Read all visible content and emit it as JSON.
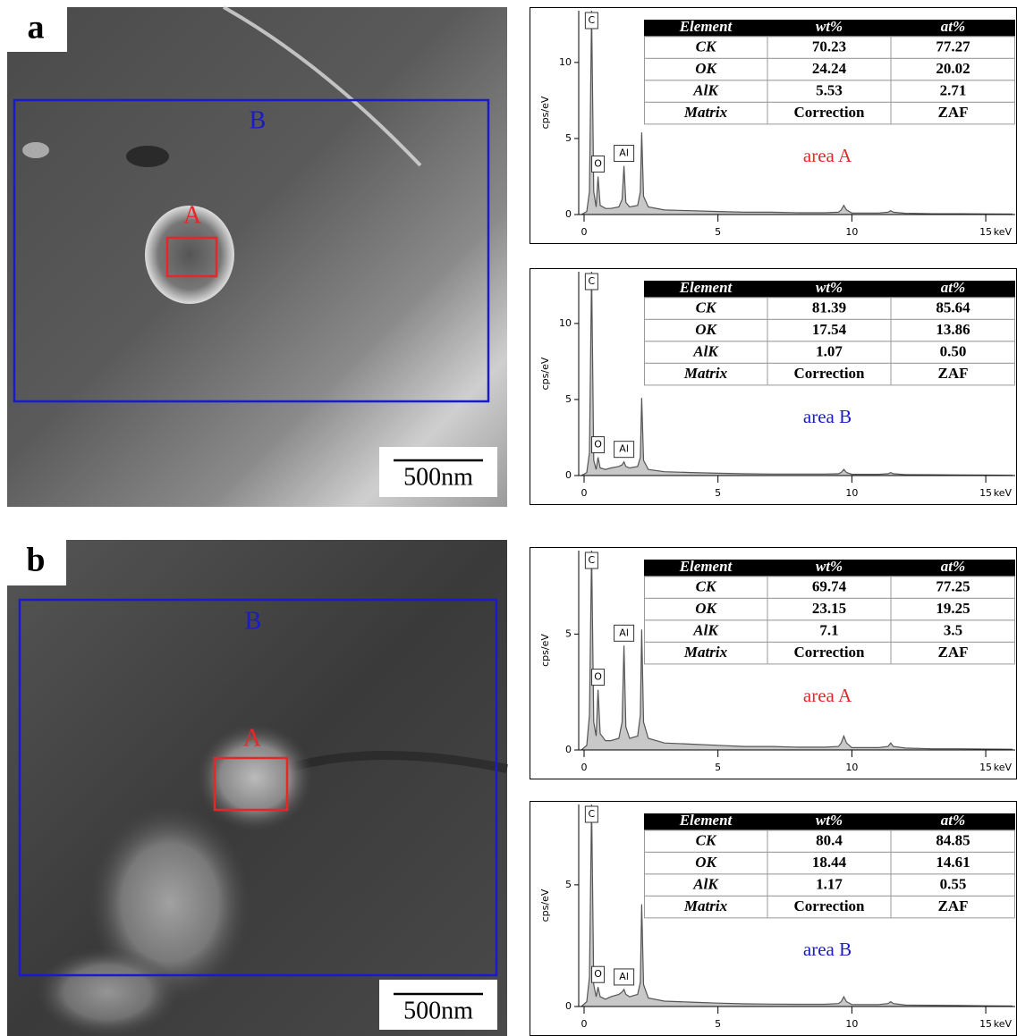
{
  "panels": [
    {
      "label": "a",
      "regions": [
        "B",
        "A"
      ],
      "scale_bar": "500nm"
    },
    {
      "label": "b",
      "regions": [
        "B",
        "A"
      ],
      "scale_bar": "500nm"
    }
  ],
  "chart_data": [
    {
      "type": "line",
      "ylabel": "cps/eV",
      "xlabel": "keV",
      "annotation": "area A",
      "annotation_color": "#e8262a",
      "xlim": [
        -0.2,
        16.1
      ],
      "xticks": [
        0,
        5,
        10,
        15
      ],
      "ylim": [
        0,
        13.4
      ],
      "yticks": [
        0,
        5,
        10
      ],
      "color": "#555",
      "x": [
        -0.1,
        0.1,
        0.2,
        0.28,
        0.36,
        0.45,
        0.52,
        0.6,
        0.8,
        1.0,
        1.3,
        1.42,
        1.49,
        1.56,
        1.7,
        2.0,
        2.1,
        2.15,
        2.22,
        2.4,
        3,
        4,
        5,
        6,
        7,
        8,
        9,
        9.5,
        9.6,
        9.7,
        9.8,
        10,
        11,
        11.35,
        11.45,
        11.55,
        12,
        13,
        14,
        15,
        16
      ],
      "values": [
        0,
        0.2,
        1.5,
        13.4,
        1.5,
        0.5,
        2.5,
        0.6,
        0.4,
        0.4,
        0.5,
        1,
        3.2,
        0.8,
        0.5,
        0.6,
        1.5,
        5.4,
        1.2,
        0.5,
        0.3,
        0.25,
        0.2,
        0.15,
        0.15,
        0.12,
        0.12,
        0.15,
        0.3,
        0.6,
        0.3,
        0.1,
        0.1,
        0.15,
        0.25,
        0.15,
        0.08,
        0.05,
        0.05,
        0.04,
        0.03
      ],
      "peaks": [
        {
          "label": "C",
          "x": 0.28
        },
        {
          "label": "O",
          "x": 0.52
        },
        {
          "label": "Al",
          "x": 1.49
        }
      ],
      "table": {
        "header": [
          "Element",
          "wt%",
          "at%"
        ],
        "rows": [
          [
            "CK",
            "70.23",
            "77.27"
          ],
          [
            "OK",
            "24.24",
            "20.02"
          ],
          [
            "AlK",
            "5.53",
            "2.71"
          ],
          [
            "Matrix",
            "Correction",
            "ZAF"
          ]
        ]
      }
    },
    {
      "type": "line",
      "ylabel": "cps/eV",
      "xlabel": "keV",
      "annotation": "area B",
      "annotation_color": "#1a1acc",
      "xlim": [
        -0.2,
        16.1
      ],
      "xticks": [
        0,
        5,
        10,
        15
      ],
      "ylim": [
        0,
        13.4
      ],
      "yticks": [
        0,
        5,
        10
      ],
      "color": "#555",
      "x": [
        -0.1,
        0.1,
        0.2,
        0.28,
        0.36,
        0.45,
        0.52,
        0.6,
        0.8,
        1.0,
        1.3,
        1.42,
        1.49,
        1.56,
        1.7,
        2.0,
        2.1,
        2.15,
        2.22,
        2.4,
        3,
        4,
        5,
        6,
        7,
        8,
        9,
        9.5,
        9.6,
        9.7,
        9.8,
        10,
        11,
        11.35,
        11.45,
        11.55,
        12,
        13,
        14,
        15,
        16
      ],
      "values": [
        0,
        0.2,
        1.5,
        13.4,
        1.0,
        0.4,
        1.2,
        0.5,
        0.4,
        0.5,
        0.6,
        0.7,
        0.9,
        0.6,
        0.5,
        0.6,
        1.2,
        5.1,
        1.0,
        0.4,
        0.25,
        0.2,
        0.15,
        0.12,
        0.1,
        0.1,
        0.1,
        0.12,
        0.2,
        0.4,
        0.2,
        0.08,
        0.08,
        0.12,
        0.2,
        0.12,
        0.06,
        0.05,
        0.04,
        0.03,
        0.02
      ],
      "peaks": [
        {
          "label": "C",
          "x": 0.28
        },
        {
          "label": "O",
          "x": 0.52
        },
        {
          "label": "Al",
          "x": 1.49
        }
      ],
      "table": {
        "header": [
          "Element",
          "wt%",
          "at%"
        ],
        "rows": [
          [
            "CK",
            "81.39",
            "85.64"
          ],
          [
            "OK",
            "17.54",
            "13.86"
          ],
          [
            "AlK",
            "1.07",
            "0.50"
          ],
          [
            "Matrix",
            "Correction",
            "ZAF"
          ]
        ]
      }
    },
    {
      "type": "line",
      "ylabel": "cps/eV",
      "xlabel": "keV",
      "annotation": "area A",
      "annotation_color": "#e8262a",
      "xlim": [
        -0.2,
        16.1
      ],
      "xticks": [
        0,
        5,
        10,
        15
      ],
      "ylim": [
        0,
        8.6
      ],
      "yticks": [
        0,
        5
      ],
      "color": "#555",
      "x": [
        -0.1,
        0.1,
        0.2,
        0.28,
        0.36,
        0.45,
        0.52,
        0.6,
        0.8,
        1.0,
        1.3,
        1.42,
        1.49,
        1.56,
        1.7,
        2.0,
        2.1,
        2.15,
        2.22,
        2.4,
        3,
        4,
        5,
        6,
        7,
        8,
        9,
        9.5,
        9.6,
        9.7,
        9.8,
        10,
        11,
        11.35,
        11.45,
        11.55,
        12,
        13,
        14,
        15,
        16
      ],
      "values": [
        0,
        0.2,
        1.5,
        8.6,
        1.2,
        0.6,
        2.6,
        0.7,
        0.4,
        0.4,
        0.5,
        1.2,
        4.5,
        1.0,
        0.5,
        0.6,
        1.5,
        5.2,
        1.2,
        0.5,
        0.3,
        0.25,
        0.2,
        0.15,
        0.15,
        0.12,
        0.12,
        0.15,
        0.3,
        0.6,
        0.3,
        0.1,
        0.1,
        0.15,
        0.3,
        0.15,
        0.08,
        0.05,
        0.05,
        0.04,
        0.03
      ],
      "peaks": [
        {
          "label": "C",
          "x": 0.28
        },
        {
          "label": "O",
          "x": 0.52
        },
        {
          "label": "Al",
          "x": 1.49
        }
      ],
      "table": {
        "header": [
          "Element",
          "wt%",
          "at%"
        ],
        "rows": [
          [
            "CK",
            "69.74",
            "77.25"
          ],
          [
            "OK",
            "23.15",
            "19.25"
          ],
          [
            "AlK",
            "7.1",
            "3.5"
          ],
          [
            "Matrix",
            "Correction",
            "ZAF"
          ]
        ]
      }
    },
    {
      "type": "line",
      "ylabel": "cps/eV",
      "xlabel": "keV",
      "annotation": "area B",
      "annotation_color": "#1a1acc",
      "xlim": [
        -0.2,
        16.1
      ],
      "xticks": [
        0,
        5,
        10,
        15
      ],
      "ylim": [
        0,
        8.3
      ],
      "yticks": [
        0,
        5
      ],
      "color": "#555",
      "x": [
        -0.1,
        0.1,
        0.2,
        0.28,
        0.36,
        0.45,
        0.52,
        0.6,
        0.8,
        1.0,
        1.3,
        1.42,
        1.49,
        1.56,
        1.7,
        2.0,
        2.1,
        2.15,
        2.22,
        2.4,
        3,
        4,
        5,
        6,
        7,
        8,
        9,
        9.5,
        9.6,
        9.7,
        9.8,
        10,
        11,
        11.35,
        11.45,
        11.55,
        12,
        13,
        14,
        15,
        16
      ],
      "values": [
        0,
        0.2,
        1.2,
        8.3,
        0.9,
        0.4,
        0.8,
        0.4,
        0.3,
        0.4,
        0.5,
        0.6,
        0.7,
        0.5,
        0.4,
        0.5,
        1.0,
        4.2,
        0.9,
        0.35,
        0.22,
        0.18,
        0.14,
        0.11,
        0.1,
        0.09,
        0.09,
        0.12,
        0.2,
        0.4,
        0.2,
        0.08,
        0.08,
        0.12,
        0.2,
        0.12,
        0.06,
        0.05,
        0.04,
        0.03,
        0.02
      ],
      "peaks": [
        {
          "label": "C",
          "x": 0.28
        },
        {
          "label": "O",
          "x": 0.52
        },
        {
          "label": "Al",
          "x": 1.49
        }
      ],
      "table": {
        "header": [
          "Element",
          "wt%",
          "at%"
        ],
        "rows": [
          [
            "CK",
            "80.4",
            "84.85"
          ],
          [
            "OK",
            "18.44",
            "14.61"
          ],
          [
            "AlK",
            "1.17",
            "0.55"
          ],
          [
            "Matrix",
            "Correction",
            "ZAF"
          ]
        ]
      }
    }
  ]
}
